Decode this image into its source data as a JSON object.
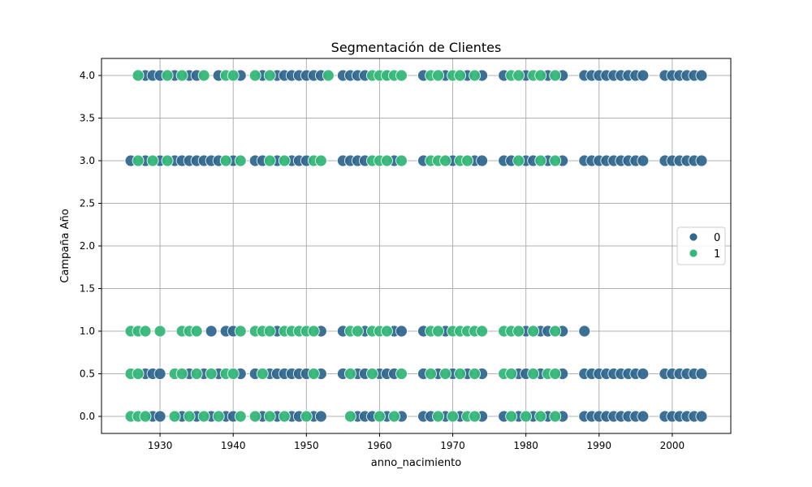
{
  "chart_data": {
    "type": "scatter",
    "title": "Segmentación de Clientes",
    "xlabel": "anno_nacimiento",
    "ylabel": "Campaña Año",
    "xlim": [
      1922,
      2008
    ],
    "ylim": [
      -0.2,
      4.2
    ],
    "xticks": [
      "1930",
      "1940",
      "1950",
      "1960",
      "1970",
      "1980",
      "1990",
      "2000"
    ],
    "yticks": [
      "0.0",
      "0.5",
      "1.0",
      "1.5",
      "2.0",
      "2.5",
      "3.0",
      "3.5",
      "4.0"
    ],
    "grid": true,
    "legend": {
      "placement": "center-right",
      "entries": [
        "0",
        "1"
      ]
    },
    "colors": {
      "0": "#31688e",
      "1": "#35b779"
    },
    "series": [
      {
        "name": "0",
        "points": [
          [
            1928,
            4
          ],
          [
            1929,
            4
          ],
          [
            1930,
            4
          ],
          [
            1932,
            4
          ],
          [
            1934,
            4
          ],
          [
            1935,
            4
          ],
          [
            1938,
            4
          ],
          [
            1941,
            4
          ],
          [
            1944,
            4
          ],
          [
            1946,
            4
          ],
          [
            1947,
            4
          ],
          [
            1948,
            4
          ],
          [
            1949,
            4
          ],
          [
            1950,
            4
          ],
          [
            1951,
            4
          ],
          [
            1952,
            4
          ],
          [
            1955,
            4
          ],
          [
            1956,
            4
          ],
          [
            1957,
            4
          ],
          [
            1958,
            4
          ],
          [
            1961,
            4
          ],
          [
            1966,
            4
          ],
          [
            1969,
            4
          ],
          [
            1972,
            4
          ],
          [
            1974,
            4
          ],
          [
            1977,
            4
          ],
          [
            1980,
            4
          ],
          [
            1983,
            4
          ],
          [
            1985,
            4
          ],
          [
            1988,
            4
          ],
          [
            1989,
            4
          ],
          [
            1990,
            4
          ],
          [
            1991,
            4
          ],
          [
            1992,
            4
          ],
          [
            1993,
            4
          ],
          [
            1994,
            4
          ],
          [
            1995,
            4
          ],
          [
            1996,
            4
          ],
          [
            1999,
            4
          ],
          [
            2000,
            4
          ],
          [
            2001,
            4
          ],
          [
            2002,
            4
          ],
          [
            2003,
            4
          ],
          [
            2004,
            4
          ],
          [
            1926,
            3
          ],
          [
            1928,
            3
          ],
          [
            1930,
            3
          ],
          [
            1932,
            3
          ],
          [
            1933,
            3
          ],
          [
            1934,
            3
          ],
          [
            1935,
            3
          ],
          [
            1936,
            3
          ],
          [
            1937,
            3
          ],
          [
            1938,
            3
          ],
          [
            1940,
            3
          ],
          [
            1943,
            3
          ],
          [
            1944,
            3
          ],
          [
            1946,
            3
          ],
          [
            1948,
            3
          ],
          [
            1949,
            3
          ],
          [
            1950,
            3
          ],
          [
            1955,
            3
          ],
          [
            1956,
            3
          ],
          [
            1957,
            3
          ],
          [
            1958,
            3
          ],
          [
            1962,
            3
          ],
          [
            1966,
            3
          ],
          [
            1970,
            3
          ],
          [
            1973,
            3
          ],
          [
            1974,
            3
          ],
          [
            1977,
            3
          ],
          [
            1978,
            3
          ],
          [
            1980,
            3
          ],
          [
            1981,
            3
          ],
          [
            1983,
            3
          ],
          [
            1985,
            3
          ],
          [
            1988,
            3
          ],
          [
            1989,
            3
          ],
          [
            1990,
            3
          ],
          [
            1991,
            3
          ],
          [
            1992,
            3
          ],
          [
            1993,
            3
          ],
          [
            1994,
            3
          ],
          [
            1995,
            3
          ],
          [
            1996,
            3
          ],
          [
            1999,
            3
          ],
          [
            2000,
            3
          ],
          [
            2001,
            3
          ],
          [
            2002,
            3
          ],
          [
            2003,
            3
          ],
          [
            2004,
            3
          ],
          [
            1937,
            1
          ],
          [
            1939,
            1
          ],
          [
            1940,
            1
          ],
          [
            1946,
            1
          ],
          [
            1952,
            1
          ],
          [
            1955,
            1
          ],
          [
            1958,
            1
          ],
          [
            1962,
            1
          ],
          [
            1963,
            1
          ],
          [
            1966,
            1
          ],
          [
            1969,
            1
          ],
          [
            1980,
            1
          ],
          [
            1982,
            1
          ],
          [
            1983,
            1
          ],
          [
            1985,
            1
          ],
          [
            1988,
            1
          ],
          [
            1928,
            0.5
          ],
          [
            1929,
            0.5
          ],
          [
            1930,
            0.5
          ],
          [
            1934,
            0.5
          ],
          [
            1936,
            0.5
          ],
          [
            1938,
            0.5
          ],
          [
            1941,
            0.5
          ],
          [
            1943,
            0.5
          ],
          [
            1945,
            0.5
          ],
          [
            1946,
            0.5
          ],
          [
            1947,
            0.5
          ],
          [
            1948,
            0.5
          ],
          [
            1949,
            0.5
          ],
          [
            1950,
            0.5
          ],
          [
            1952,
            0.5
          ],
          [
            1955,
            0.5
          ],
          [
            1957,
            0.5
          ],
          [
            1958,
            0.5
          ],
          [
            1960,
            0.5
          ],
          [
            1961,
            0.5
          ],
          [
            1962,
            0.5
          ],
          [
            1966,
            0.5
          ],
          [
            1968,
            0.5
          ],
          [
            1970,
            0.5
          ],
          [
            1972,
            0.5
          ],
          [
            1974,
            0.5
          ],
          [
            1979,
            0.5
          ],
          [
            1980,
            0.5
          ],
          [
            1982,
            0.5
          ],
          [
            1985,
            0.5
          ],
          [
            1988,
            0.5
          ],
          [
            1989,
            0.5
          ],
          [
            1990,
            0.5
          ],
          [
            1991,
            0.5
          ],
          [
            1992,
            0.5
          ],
          [
            1993,
            0.5
          ],
          [
            1994,
            0.5
          ],
          [
            1995,
            0.5
          ],
          [
            1996,
            0.5
          ],
          [
            1999,
            0.5
          ],
          [
            2000,
            0.5
          ],
          [
            2001,
            0.5
          ],
          [
            2002,
            0.5
          ],
          [
            2003,
            0.5
          ],
          [
            2004,
            0.5
          ],
          [
            1929,
            0
          ],
          [
            1930,
            0
          ],
          [
            1933,
            0
          ],
          [
            1935,
            0
          ],
          [
            1937,
            0
          ],
          [
            1939,
            0
          ],
          [
            1940,
            0
          ],
          [
            1944,
            0
          ],
          [
            1946,
            0
          ],
          [
            1948,
            0
          ],
          [
            1949,
            0
          ],
          [
            1951,
            0
          ],
          [
            1952,
            0
          ],
          [
            1957,
            0
          ],
          [
            1958,
            0
          ],
          [
            1959,
            0
          ],
          [
            1961,
            0
          ],
          [
            1963,
            0
          ],
          [
            1966,
            0
          ],
          [
            1967,
            0
          ],
          [
            1969,
            0
          ],
          [
            1971,
            0
          ],
          [
            1974,
            0
          ],
          [
            1977,
            0
          ],
          [
            1979,
            0
          ],
          [
            1981,
            0
          ],
          [
            1983,
            0
          ],
          [
            1985,
            0
          ],
          [
            1988,
            0
          ],
          [
            1989,
            0
          ],
          [
            1990,
            0
          ],
          [
            1991,
            0
          ],
          [
            1992,
            0
          ],
          [
            1993,
            0
          ],
          [
            1994,
            0
          ],
          [
            1995,
            0
          ],
          [
            1996,
            0
          ],
          [
            1999,
            0
          ],
          [
            2000,
            0
          ],
          [
            2001,
            0
          ],
          [
            2002,
            0
          ],
          [
            2003,
            0
          ],
          [
            2004,
            0
          ]
        ]
      },
      {
        "name": "1",
        "points": [
          [
            1927,
            4
          ],
          [
            1931,
            4
          ],
          [
            1933,
            4
          ],
          [
            1936,
            4
          ],
          [
            1939,
            4
          ],
          [
            1940,
            4
          ],
          [
            1943,
            4
          ],
          [
            1945,
            4
          ],
          [
            1953,
            4
          ],
          [
            1959,
            4
          ],
          [
            1960,
            4
          ],
          [
            1961,
            4
          ],
          [
            1962,
            4
          ],
          [
            1963,
            4
          ],
          [
            1967,
            4
          ],
          [
            1968,
            4
          ],
          [
            1970,
            4
          ],
          [
            1971,
            4
          ],
          [
            1973,
            4
          ],
          [
            1978,
            4
          ],
          [
            1979,
            4
          ],
          [
            1981,
            4
          ],
          [
            1982,
            4
          ],
          [
            1984,
            4
          ],
          [
            1927,
            3
          ],
          [
            1929,
            3
          ],
          [
            1931,
            3
          ],
          [
            1939,
            3
          ],
          [
            1941,
            3
          ],
          [
            1945,
            3
          ],
          [
            1947,
            3
          ],
          [
            1951,
            3
          ],
          [
            1952,
            3
          ],
          [
            1959,
            3
          ],
          [
            1960,
            3
          ],
          [
            1961,
            3
          ],
          [
            1963,
            3
          ],
          [
            1967,
            3
          ],
          [
            1968,
            3
          ],
          [
            1969,
            3
          ],
          [
            1971,
            3
          ],
          [
            1972,
            3
          ],
          [
            1979,
            3
          ],
          [
            1982,
            3
          ],
          [
            1984,
            3
          ],
          [
            1926,
            1
          ],
          [
            1927,
            1
          ],
          [
            1928,
            1
          ],
          [
            1930,
            1
          ],
          [
            1933,
            1
          ],
          [
            1934,
            1
          ],
          [
            1935,
            1
          ],
          [
            1941,
            1
          ],
          [
            1943,
            1
          ],
          [
            1944,
            1
          ],
          [
            1945,
            1
          ],
          [
            1947,
            1
          ],
          [
            1948,
            1
          ],
          [
            1949,
            1
          ],
          [
            1950,
            1
          ],
          [
            1951,
            1
          ],
          [
            1956,
            1
          ],
          [
            1957,
            1
          ],
          [
            1959,
            1
          ],
          [
            1960,
            1
          ],
          [
            1961,
            1
          ],
          [
            1967,
            1
          ],
          [
            1968,
            1
          ],
          [
            1970,
            1
          ],
          [
            1971,
            1
          ],
          [
            1972,
            1
          ],
          [
            1973,
            1
          ],
          [
            1974,
            1
          ],
          [
            1977,
            1
          ],
          [
            1978,
            1
          ],
          [
            1979,
            1
          ],
          [
            1981,
            1
          ],
          [
            1984,
            1
          ],
          [
            1926,
            0.5
          ],
          [
            1927,
            0.5
          ],
          [
            1932,
            0.5
          ],
          [
            1933,
            0.5
          ],
          [
            1935,
            0.5
          ],
          [
            1937,
            0.5
          ],
          [
            1939,
            0.5
          ],
          [
            1940,
            0.5
          ],
          [
            1944,
            0.5
          ],
          [
            1951,
            0.5
          ],
          [
            1956,
            0.5
          ],
          [
            1959,
            0.5
          ],
          [
            1963,
            0.5
          ],
          [
            1967,
            0.5
          ],
          [
            1969,
            0.5
          ],
          [
            1971,
            0.5
          ],
          [
            1973,
            0.5
          ],
          [
            1977,
            0.5
          ],
          [
            1978,
            0.5
          ],
          [
            1981,
            0.5
          ],
          [
            1983,
            0.5
          ],
          [
            1984,
            0.5
          ],
          [
            1926,
            0
          ],
          [
            1927,
            0
          ],
          [
            1928,
            0
          ],
          [
            1932,
            0
          ],
          [
            1934,
            0
          ],
          [
            1936,
            0
          ],
          [
            1938,
            0
          ],
          [
            1941,
            0
          ],
          [
            1943,
            0
          ],
          [
            1945,
            0
          ],
          [
            1947,
            0
          ],
          [
            1950,
            0
          ],
          [
            1956,
            0
          ],
          [
            1960,
            0
          ],
          [
            1962,
            0
          ],
          [
            1968,
            0
          ],
          [
            1970,
            0
          ],
          [
            1972,
            0
          ],
          [
            1973,
            0
          ],
          [
            1978,
            0
          ],
          [
            1980,
            0
          ],
          [
            1982,
            0
          ],
          [
            1984,
            0
          ]
        ]
      }
    ]
  }
}
